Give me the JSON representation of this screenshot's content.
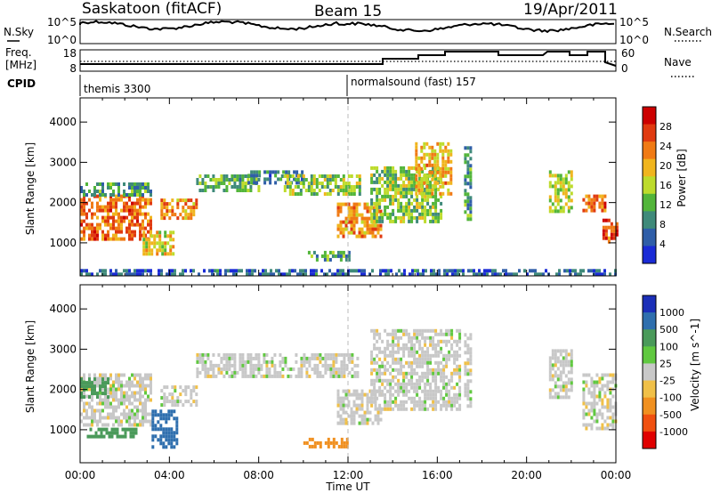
{
  "header": {
    "title": "Saskatoon (fitACF)",
    "beam": "Beam 15",
    "date": "19/Apr/2011"
  },
  "left_labels": {
    "nsky": "N.Sky",
    "freq": "Freq.",
    "mhz": "[MHz]",
    "cpid": "CPID"
  },
  "right_labels": {
    "nsearch": "N.Search",
    "nave": "Nave"
  },
  "noise_axis": {
    "left_ticks": [
      "10^5",
      "10^0"
    ],
    "right_ticks": [
      "10^5",
      "10^0"
    ]
  },
  "freq_axis": {
    "left_ticks": [
      "18",
      "8"
    ],
    "right_ticks": [
      "60",
      "0"
    ]
  },
  "cpid_modes": [
    {
      "label": "themis 3300",
      "start_hour": 0
    },
    {
      "label": "normalsound (fast) 157",
      "start_hour": 12
    }
  ],
  "colors": {
    "power_scale": [
      "#1a2bd6",
      "#2f5ea8",
      "#3f8a7a",
      "#52b53a",
      "#bddb2c",
      "#f0b51e",
      "#f07a14",
      "#e03a10",
      "#cc0000"
    ],
    "velocity_scale": [
      "#1b2fb8",
      "#2f6fae",
      "#4a9a5a",
      "#60c840",
      "#c8c8c8",
      "#f0c048",
      "#f09020",
      "#f05010",
      "#e00000"
    ]
  },
  "chart_data": [
    {
      "type": "heatmap",
      "title": "Power",
      "ylabel": "Slant Range [km]",
      "ylim": [
        180,
        4600
      ],
      "y_ticks": [
        "1000",
        "2000",
        "3000",
        "4000"
      ],
      "xlim": [
        0,
        24
      ],
      "colorbar_label": "Power [dB]",
      "colorbar_ticks": [
        "4",
        "8",
        "12",
        "16",
        "20",
        "24",
        "28"
      ],
      "colorbar_range": [
        0,
        32
      ],
      "bands": [
        {
          "t0": 0.0,
          "t1": 3.2,
          "r0": 1100,
          "r1": 2200,
          "dB": 24
        },
        {
          "t0": 0.0,
          "t1": 3.2,
          "r0": 2200,
          "r1": 2500,
          "dB": 10
        },
        {
          "t0": 2.8,
          "t1": 4.2,
          "r0": 700,
          "r1": 1300,
          "dB": 18
        },
        {
          "t0": 3.6,
          "t1": 5.2,
          "r0": 1600,
          "r1": 2100,
          "dB": 22
        },
        {
          "t0": 5.2,
          "t1": 8.0,
          "r0": 2300,
          "r1": 2700,
          "dB": 12
        },
        {
          "t0": 7.5,
          "t1": 10.0,
          "r0": 2500,
          "r1": 2800,
          "dB": 8
        },
        {
          "t0": 9.0,
          "t1": 12.5,
          "r0": 2200,
          "r1": 2700,
          "dB": 14
        },
        {
          "t0": 11.5,
          "t1": 13.5,
          "r0": 1200,
          "r1": 2000,
          "dB": 22
        },
        {
          "t0": 10.2,
          "t1": 12.0,
          "r0": 600,
          "r1": 800,
          "dB": 10
        },
        {
          "t0": 13.0,
          "t1": 16.2,
          "r0": 1500,
          "r1": 2900,
          "dB": 14
        },
        {
          "t0": 15.0,
          "t1": 16.6,
          "r0": 2200,
          "r1": 3500,
          "dB": 20
        },
        {
          "t0": 17.2,
          "t1": 17.5,
          "r0": 1600,
          "r1": 3400,
          "dB": 10
        },
        {
          "t0": 21.0,
          "t1": 22.0,
          "r0": 1800,
          "r1": 2800,
          "dB": 16
        },
        {
          "t0": 22.5,
          "t1": 23.5,
          "r0": 1800,
          "r1": 2200,
          "dB": 24
        },
        {
          "t0": 23.4,
          "t1": 24.0,
          "r0": 1000,
          "r1": 1600,
          "dB": 26
        },
        {
          "t0": 0.0,
          "t1": 24.0,
          "r0": 180,
          "r1": 350,
          "dB": 6
        }
      ]
    },
    {
      "type": "heatmap",
      "title": "Velocity",
      "ylabel": "Slant Range [km]",
      "xlabel": "Time UT",
      "ylim": [
        180,
        4600
      ],
      "y_ticks": [
        "1000",
        "2000",
        "3000",
        "4000"
      ],
      "xlim": [
        0,
        24
      ],
      "x_ticks": [
        "00:00",
        "04:00",
        "08:00",
        "12:00",
        "16:00",
        "20:00",
        "00:00"
      ],
      "colorbar_label": "Velocity [m s^-1]",
      "colorbar_ticks": [
        "1000",
        "500",
        "100",
        "25",
        "-25",
        "-100",
        "-500",
        "-1000"
      ],
      "bands": [
        {
          "t0": 0.0,
          "t1": 3.2,
          "r0": 1100,
          "r1": 2400,
          "v": 0
        },
        {
          "t0": 0.0,
          "t1": 1.2,
          "r0": 1800,
          "r1": 2300,
          "v": 150
        },
        {
          "t0": 0.3,
          "t1": 2.5,
          "r0": 850,
          "r1": 1050,
          "v": 200
        },
        {
          "t0": 3.2,
          "t1": 4.3,
          "r0": 600,
          "r1": 1500,
          "v": 600
        },
        {
          "t0": 3.6,
          "t1": 5.2,
          "r0": 1600,
          "r1": 2100,
          "v": 0
        },
        {
          "t0": 5.2,
          "t1": 12.5,
          "r0": 2300,
          "r1": 2900,
          "v": 0
        },
        {
          "t0": 11.5,
          "t1": 13.5,
          "r0": 1200,
          "r1": 2000,
          "v": 0
        },
        {
          "t0": 10.0,
          "t1": 12.0,
          "r0": 550,
          "r1": 800,
          "v": -200
        },
        {
          "t0": 13.0,
          "t1": 17.0,
          "r0": 1500,
          "r1": 3500,
          "v": 0
        },
        {
          "t0": 17.2,
          "t1": 17.5,
          "r0": 1600,
          "r1": 3400,
          "v": 0
        },
        {
          "t0": 21.0,
          "t1": 22.0,
          "r0": 1800,
          "r1": 3000,
          "v": 0
        },
        {
          "t0": 22.5,
          "t1": 24.0,
          "r0": 1000,
          "r1": 2400,
          "v": 0
        }
      ]
    }
  ]
}
